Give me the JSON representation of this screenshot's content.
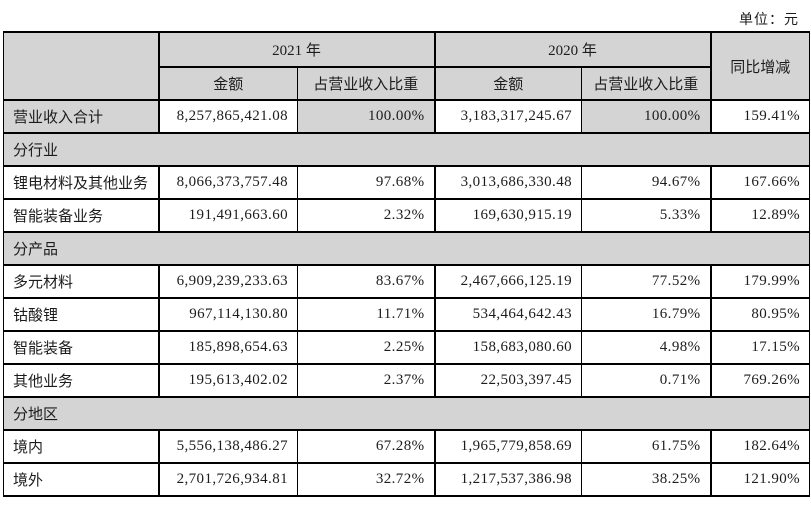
{
  "unit_label": "单位：元",
  "table": {
    "header": {
      "corner": "",
      "year_2021": "2021 年",
      "year_2020": "2020 年",
      "amount": "金额",
      "pct_of_revenue": "占营业收入比重",
      "yoy_change": "同比增减"
    },
    "colors": {
      "header_bg": "#d4d4d4",
      "section_bg": "#d4d4d4",
      "shaded_cell_bg": "#d4d4d4",
      "border": "#000000",
      "text": "#1c1c1c"
    },
    "rows": [
      {
        "type": "data",
        "shaded": true,
        "label": "营业收入合计",
        "amount_2021": "8,257,865,421.08",
        "pct_2021": "100.00%",
        "amount_2020": "3,183,317,245.67",
        "pct_2020": "100.00%",
        "yoy": "159.41%"
      },
      {
        "type": "section",
        "label": "分行业"
      },
      {
        "type": "data",
        "label": "锂电材料及其他业务",
        "amount_2021": "8,066,373,757.48",
        "pct_2021": "97.68%",
        "amount_2020": "3,013,686,330.48",
        "pct_2020": "94.67%",
        "yoy": "167.66%"
      },
      {
        "type": "data",
        "label": "智能装备业务",
        "amount_2021": "191,491,663.60",
        "pct_2021": "2.32%",
        "amount_2020": "169,630,915.19",
        "pct_2020": "5.33%",
        "yoy": "12.89%"
      },
      {
        "type": "section",
        "label": "分产品"
      },
      {
        "type": "data",
        "label": "多元材料",
        "amount_2021": "6,909,239,233.63",
        "pct_2021": "83.67%",
        "amount_2020": "2,467,666,125.19",
        "pct_2020": "77.52%",
        "yoy": "179.99%"
      },
      {
        "type": "data",
        "label": "钴酸锂",
        "amount_2021": "967,114,130.80",
        "pct_2021": "11.71%",
        "amount_2020": "534,464,642.43",
        "pct_2020": "16.79%",
        "yoy": "80.95%"
      },
      {
        "type": "data",
        "label": "智能装备",
        "amount_2021": "185,898,654.63",
        "pct_2021": "2.25%",
        "amount_2020": "158,683,080.60",
        "pct_2020": "4.98%",
        "yoy": "17.15%"
      },
      {
        "type": "data",
        "label": "其他业务",
        "amount_2021": "195,613,402.02",
        "pct_2021": "2.37%",
        "amount_2020": "22,503,397.45",
        "pct_2020": "0.71%",
        "yoy": "769.26%"
      },
      {
        "type": "section",
        "label": "分地区"
      },
      {
        "type": "data",
        "label": "境内",
        "amount_2021": "5,556,138,486.27",
        "pct_2021": "67.28%",
        "amount_2020": "1,965,779,858.69",
        "pct_2020": "61.75%",
        "yoy": "182.64%"
      },
      {
        "type": "data",
        "label": "境外",
        "amount_2021": "2,701,726,934.81",
        "pct_2021": "32.72%",
        "amount_2020": "1,217,537,386.98",
        "pct_2020": "38.25%",
        "yoy": "121.90%"
      }
    ]
  }
}
